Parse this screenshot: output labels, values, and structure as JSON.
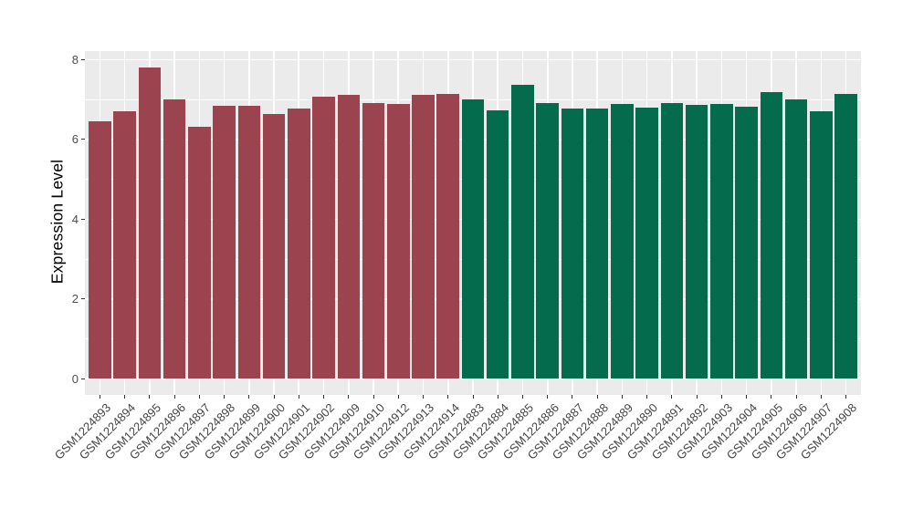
{
  "figure": {
    "background": "#FFFFFF",
    "panel_background": "#EBEBEB",
    "grid_color": "#FFFFFF",
    "axis_text_color": "#4D4D4D",
    "axis_title_color": "#000000",
    "tick_mark_color": "#333333"
  },
  "chart_data": {
    "type": "bar",
    "title": "",
    "xlabel": "",
    "ylabel": "Expression Level",
    "ylim": [
      0,
      8.2
    ],
    "yticks": [
      0,
      2,
      4,
      6,
      8
    ],
    "grid": "white major and minor horizontal gridlines, white vertical gridline per category",
    "legend": "none",
    "categories": [
      "GSM1224893",
      "GSM1224894",
      "GSM1224895",
      "GSM1224896",
      "GSM1224897",
      "GSM1224898",
      "GSM1224899",
      "GSM1224900",
      "GSM1224901",
      "GSM1224902",
      "GSM1224909",
      "GSM1224910",
      "GSM1224912",
      "GSM1224913",
      "GSM1224914",
      "GSM1224883",
      "GSM1224884",
      "GSM1224885",
      "GSM1224886",
      "GSM1224887",
      "GSM1224888",
      "GSM1224889",
      "GSM1224890",
      "GSM1224891",
      "GSM1224892",
      "GSM1224903",
      "GSM1224904",
      "GSM1224905",
      "GSM1224906",
      "GSM1224907",
      "GSM1224908"
    ],
    "values": [
      6.46,
      6.7,
      7.81,
      7.0,
      6.31,
      6.85,
      6.85,
      6.64,
      6.78,
      7.07,
      7.13,
      6.91,
      6.9,
      7.13,
      7.15,
      7.01,
      6.74,
      7.38,
      6.92,
      6.78,
      6.77,
      6.89,
      6.81,
      6.92,
      6.88,
      6.89,
      6.83,
      7.19,
      7.0,
      6.72,
      7.15
    ],
    "bar_groups": [
      "maroon",
      "maroon",
      "maroon",
      "maroon",
      "maroon",
      "maroon",
      "maroon",
      "maroon",
      "maroon",
      "maroon",
      "maroon",
      "maroon",
      "maroon",
      "maroon",
      "maroon",
      "green",
      "green",
      "green",
      "green",
      "green",
      "green",
      "green",
      "green",
      "green",
      "green",
      "green",
      "green",
      "green",
      "green",
      "green",
      "green"
    ],
    "group_colors": {
      "maroon": "#9B4450",
      "green": "#046B4D"
    }
  }
}
